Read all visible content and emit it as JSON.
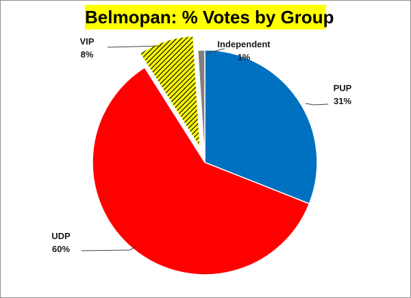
{
  "chart_data": {
    "type": "pie",
    "title": "Belmopan: % Votes by Group",
    "slices": [
      {
        "name": "PUP",
        "value": 31,
        "label": "31%",
        "color": "#0070c0",
        "pattern": "solid",
        "exploded": false
      },
      {
        "name": "UDP",
        "value": 60,
        "label": "60%",
        "color": "#ff0000",
        "pattern": "solid",
        "exploded": false
      },
      {
        "name": "VIP",
        "value": 8,
        "label": "8%",
        "color": "#ffff00",
        "pattern": "diagonal-hatch",
        "exploded": true
      },
      {
        "name": "Independent",
        "value": 1,
        "label": "1%",
        "color": "#808080",
        "pattern": "solid",
        "exploded": false
      }
    ],
    "start": "12 o'clock",
    "direction": "clockwise",
    "legend": "none",
    "data_labels": "outside-with-leader-lines"
  }
}
